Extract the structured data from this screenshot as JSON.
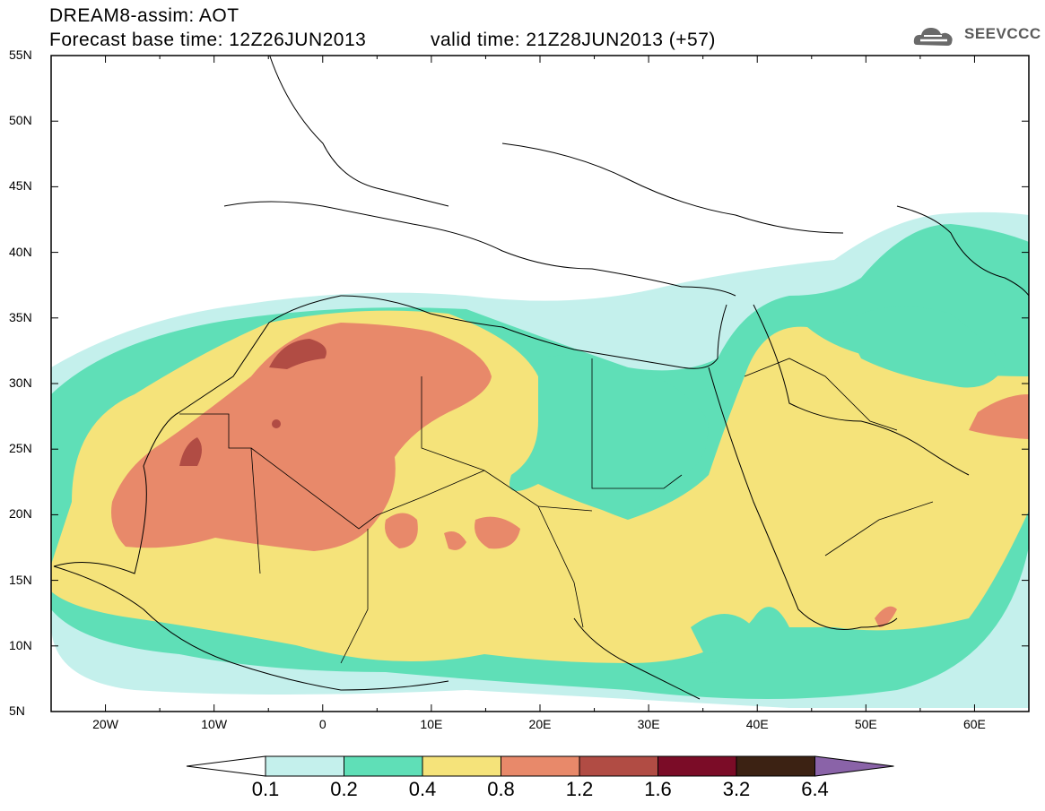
{
  "header": {
    "title": "DREAM8-assim: AOT",
    "base_time": "Forecast base time: 12Z26JUN2013",
    "valid_time": "valid time: 21Z28JUN2013 (+57)"
  },
  "logo": {
    "text": "SEEVCCC",
    "icon": "cloud-icon"
  },
  "map": {
    "lat_labels": [
      "55N",
      "50N",
      "45N",
      "40N",
      "35N",
      "30N",
      "25N",
      "20N",
      "15N",
      "10N",
      "5N"
    ],
    "lon_labels": [
      "20W",
      "10W",
      "0",
      "10E",
      "20E",
      "30E",
      "40E",
      "50E",
      "60E"
    ],
    "extent": {
      "lon": [
        -25,
        65
      ],
      "lat": [
        5,
        55
      ]
    },
    "variable": "Aerosol optical thickness (AOT)"
  },
  "colorbar": {
    "labels": [
      "0.1",
      "0.2",
      "0.4",
      "0.8",
      "1.2",
      "1.6",
      "3.2",
      "6.4"
    ],
    "colors": [
      "#c4f0ec",
      "#5fdfb7",
      "#f5e37a",
      "#e8896a",
      "#b14c44",
      "#7b0c27",
      "#3c2213",
      "#8a63a8"
    ]
  }
}
